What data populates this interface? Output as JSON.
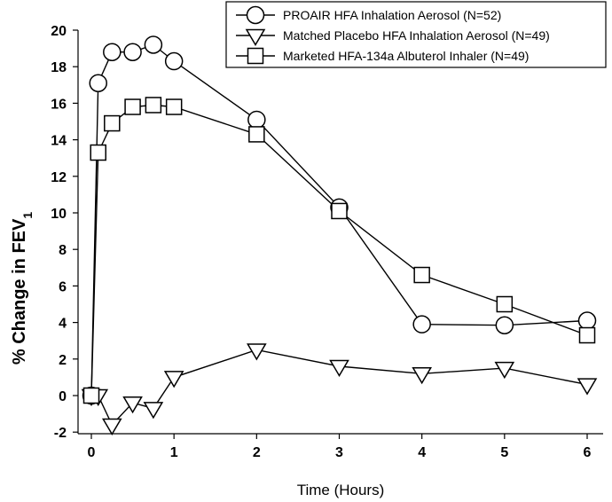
{
  "chart_data": {
    "type": "line",
    "xlabel": "Time (Hours)",
    "ylabel": "% Change in FEV",
    "ylabel_subscript": "1",
    "xlim": [
      -0.1,
      6.2
    ],
    "ylim": [
      -2,
      20
    ],
    "xticks": [
      0,
      1,
      2,
      3,
      4,
      5,
      6
    ],
    "yticks": [
      -2,
      0,
      2,
      4,
      6,
      8,
      10,
      12,
      14,
      16,
      18,
      20
    ],
    "grid": false,
    "legend_position": "top-right",
    "series": [
      {
        "name": "PROAIR HFA Inhalation Aerosol (N=52)",
        "marker": "circle",
        "x": [
          0,
          0.083,
          0.25,
          0.5,
          0.75,
          1,
          2,
          3,
          4,
          5,
          6
        ],
        "y": [
          0,
          17.1,
          18.8,
          18.8,
          19.2,
          18.3,
          15.1,
          10.3,
          3.9,
          3.85,
          4.1
        ]
      },
      {
        "name": "Matched Placebo HFA Inhalation Aerosol (N=49)",
        "marker": "triangle-down",
        "x": [
          0,
          0.083,
          0.25,
          0.5,
          0.75,
          1,
          2,
          3,
          4,
          5,
          6
        ],
        "y": [
          0,
          0,
          -1.6,
          -0.4,
          -0.7,
          1.0,
          2.5,
          1.6,
          1.2,
          1.5,
          0.6
        ]
      },
      {
        "name": "Marketed HFA-134a Albuterol Inhaler (N=49)",
        "marker": "square",
        "x": [
          0,
          0.083,
          0.25,
          0.5,
          0.75,
          1,
          2,
          3,
          4,
          5,
          6
        ],
        "y": [
          0,
          13.3,
          14.9,
          15.8,
          15.9,
          15.8,
          14.3,
          10.1,
          6.6,
          5.0,
          3.3
        ]
      }
    ]
  }
}
